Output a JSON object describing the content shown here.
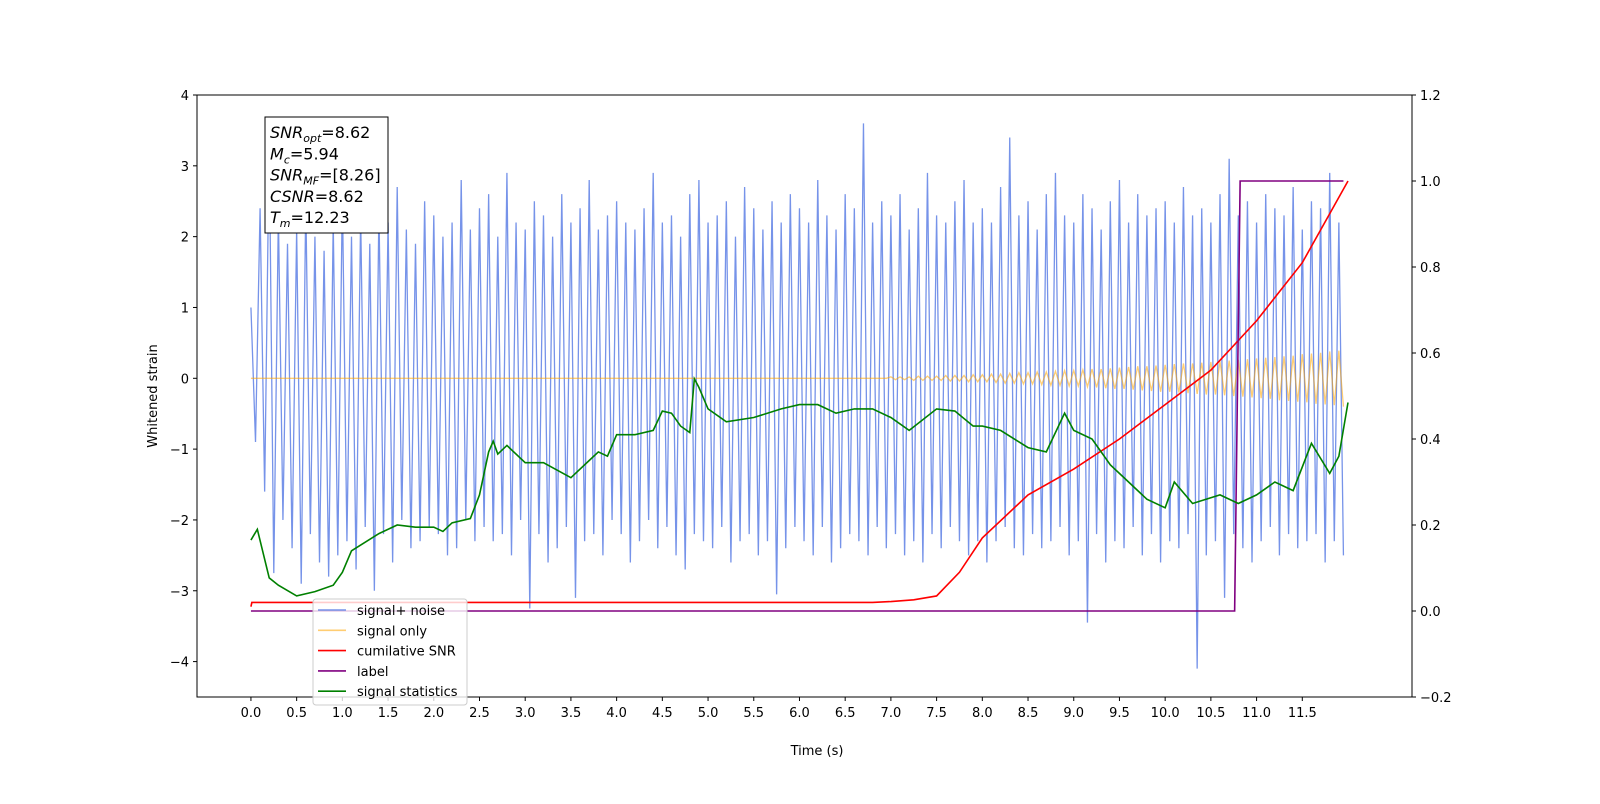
{
  "chart_data": {
    "type": "line",
    "xlabel": "Time (s)",
    "ylabel": "Whitened strain",
    "xlim": [
      -0.59,
      12.7
    ],
    "ylim": [
      -4.5,
      4
    ],
    "y2lim": [
      -0.2,
      1.2
    ],
    "xticks": [
      {
        "value": 0,
        "label": "0.0"
      },
      0.5,
      {
        "value": 1,
        "label": "1.0"
      },
      1.5,
      {
        "value": 2,
        "label": "2.0"
      },
      2.5,
      {
        "value": 3,
        "label": "3.0"
      },
      3.5,
      {
        "value": 4,
        "label": "4.0"
      },
      4.5,
      {
        "value": 5,
        "label": "5.0"
      },
      5.5,
      {
        "value": 6,
        "label": "6.0"
      },
      6.5,
      {
        "value": 7,
        "label": "7.0"
      },
      7.5,
      {
        "value": 8,
        "label": "8.0"
      },
      8.5,
      {
        "value": 9,
        "label": "9.0"
      },
      9.5,
      {
        "value": 10,
        "label": "10.0"
      },
      10.5,
      {
        "value": 11,
        "label": "11.0"
      },
      11.5
    ],
    "yticks": [
      {
        "value": -4,
        "label": "−4"
      },
      {
        "value": -3,
        "label": "−3"
      },
      {
        "value": -2,
        "label": "−2"
      },
      {
        "value": -1,
        "label": "−1"
      },
      0,
      1,
      2,
      3,
      4
    ],
    "y2ticks": [
      {
        "value": -0.2,
        "label": "−0.2"
      },
      {
        "value": 0,
        "label": "0.0"
      },
      0.2,
      0.4,
      0.6,
      0.8,
      {
        "value": 1,
        "label": "1.0"
      },
      1.2
    ],
    "legend": "lower left",
    "annotations": [
      {
        "base": "SNR",
        "sub": "opt",
        "rest": "=8.62"
      },
      {
        "base": "M",
        "sub": "c",
        "rest": "=5.94"
      },
      {
        "base": "SNR",
        "sub": "MF",
        "rest": "=[8.26]"
      },
      {
        "base": "CSNR",
        "sub": null,
        "rest": "=8.62"
      },
      {
        "base": "T",
        "sub": "m",
        "rest": "=12.23"
      }
    ],
    "series": [
      {
        "name": "signal+ noise",
        "color": "#4169e1",
        "axis": "y",
        "x": [
          0,
          0.05,
          0.1,
          0.15,
          0.2,
          0.25,
          0.3,
          0.35,
          0.4,
          0.45,
          0.5,
          0.55,
          0.6,
          0.65,
          0.7,
          0.75,
          0.8,
          0.85,
          0.9,
          0.95,
          1,
          1.05,
          1.1,
          1.15,
          1.2,
          1.25,
          1.3,
          1.35,
          1.4,
          1.45,
          1.5,
          1.55,
          1.6,
          1.65,
          1.7,
          1.75,
          1.8,
          1.85,
          1.9,
          1.95,
          2,
          2.05,
          2.1,
          2.15,
          2.2,
          2.25,
          2.3,
          2.35,
          2.4,
          2.45,
          2.5,
          2.55,
          2.6,
          2.65,
          2.7,
          2.75,
          2.8,
          2.85,
          2.9,
          2.95,
          3,
          3.05,
          3.1,
          3.15,
          3.2,
          3.25,
          3.3,
          3.35,
          3.4,
          3.45,
          3.5,
          3.55,
          3.6,
          3.65,
          3.7,
          3.75,
          3.8,
          3.85,
          3.9,
          3.95,
          4,
          4.05,
          4.1,
          4.15,
          4.2,
          4.25,
          4.3,
          4.35,
          4.4,
          4.45,
          4.5,
          4.55,
          4.6,
          4.65,
          4.7,
          4.75,
          4.8,
          4.85,
          4.9,
          4.95,
          5,
          5.05,
          5.1,
          5.15,
          5.2,
          5.25,
          5.3,
          5.35,
          5.4,
          5.45,
          5.5,
          5.55,
          5.6,
          5.65,
          5.7,
          5.75,
          5.8,
          5.85,
          5.9,
          5.95,
          6,
          6.05,
          6.1,
          6.15,
          6.2,
          6.25,
          6.3,
          6.35,
          6.4,
          6.45,
          6.5,
          6.55,
          6.6,
          6.65,
          6.7,
          6.75,
          6.8,
          6.85,
          6.9,
          6.95,
          7,
          7.05,
          7.1,
          7.15,
          7.2,
          7.25,
          7.3,
          7.35,
          7.4,
          7.45,
          7.5,
          7.55,
          7.6,
          7.65,
          7.7,
          7.75,
          7.8,
          7.85,
          7.9,
          7.95,
          8,
          8.05,
          8.1,
          8.15,
          8.2,
          8.25,
          8.3,
          8.35,
          8.4,
          8.45,
          8.5,
          8.55,
          8.6,
          8.65,
          8.7,
          8.75,
          8.8,
          8.85,
          8.9,
          8.95,
          9,
          9.05,
          9.1,
          9.15,
          9.2,
          9.25,
          9.3,
          9.35,
          9.4,
          9.45,
          9.5,
          9.55,
          9.6,
          9.65,
          9.7,
          9.75,
          9.8,
          9.85,
          9.9,
          9.95,
          10,
          10.05,
          10.1,
          10.15,
          10.2,
          10.25,
          10.3,
          10.35,
          10.4,
          10.45,
          10.5,
          10.55,
          10.6,
          10.65,
          10.7,
          10.75,
          10.8,
          10.85,
          10.9,
          10.95,
          11,
          11.05,
          11.1,
          11.15,
          11.2,
          11.25,
          11.3,
          11.35,
          11.4,
          11.45,
          11.5,
          11.55,
          11.6,
          11.65,
          11.7,
          11.75,
          11.8,
          11.85,
          11.9,
          11.95
        ],
        "values": [
          1.0,
          -0.9,
          2.4,
          -1.6,
          3.35,
          -2.75,
          2.3,
          -2.0,
          1.9,
          -2.4,
          2.1,
          -2.9,
          2.5,
          -2.2,
          2.0,
          -2.6,
          1.8,
          -2.8,
          2.2,
          -2.5,
          2.6,
          -2.3,
          2.0,
          -2.7,
          2.3,
          -2.1,
          1.9,
          -3.0,
          2.4,
          -2.2,
          2.2,
          -2.6,
          2.7,
          -2.0,
          2.1,
          -2.4,
          1.9,
          -2.3,
          2.5,
          -2.1,
          2.3,
          -2.2,
          2.0,
          -2.5,
          2.2,
          -2.4,
          2.8,
          -2.0,
          2.1,
          -2.3,
          2.4,
          -2.1,
          2.6,
          -2.3,
          2.0,
          -2.2,
          2.9,
          -2.5,
          2.2,
          -2.0,
          2.1,
          -3.25,
          2.5,
          -2.2,
          2.3,
          -2.6,
          2.0,
          -2.4,
          2.6,
          -2.1,
          2.2,
          -3.1,
          2.4,
          -2.3,
          2.8,
          -2.2,
          2.1,
          -2.5,
          2.3,
          -2.0,
          2.5,
          -2.2,
          2.2,
          -2.6,
          2.1,
          -2.3,
          2.4,
          -2.0,
          2.9,
          -2.4,
          2.2,
          -2.1,
          2.3,
          -2.5,
          2.0,
          -2.7,
          2.6,
          -2.2,
          2.8,
          -2.3,
          2.2,
          -2.4,
          2.3,
          -2.1,
          2.5,
          -2.6,
          2.0,
          -2.3,
          2.7,
          -2.2,
          2.4,
          -2.5,
          2.1,
          -2.3,
          2.5,
          -3.05,
          2.2,
          -2.4,
          2.6,
          -2.1,
          2.4,
          -2.3,
          2.2,
          -2.5,
          2.8,
          -2.1,
          2.3,
          -2.6,
          2.1,
          -2.4,
          2.6,
          -2.2,
          2.4,
          -2.3,
          3.6,
          -2.5,
          2.2,
          -2.1,
          2.5,
          -2.4,
          2.3,
          -2.2,
          2.6,
          -2.5,
          2.1,
          -2.3,
          2.4,
          -2.6,
          2.9,
          -2.2,
          2.3,
          -2.4,
          2.2,
          -2.1,
          2.5,
          -2.3,
          2.8,
          -2.5,
          2.2,
          -2.3,
          2.4,
          -2.6,
          2.2,
          -2.3,
          2.7,
          -2.1,
          3.4,
          -2.4,
          2.3,
          -2.5,
          2.5,
          -2.2,
          2.1,
          -2.4,
          2.6,
          -2.3,
          2.9,
          -2.1,
          2.3,
          -2.5,
          2.2,
          -2.3,
          2.6,
          -3.45,
          2.4,
          -2.2,
          2.1,
          -2.6,
          2.5,
          -2.3,
          2.8,
          -2.4,
          2.2,
          -2.1,
          2.6,
          -2.5,
          2.3,
          -2.2,
          2.4,
          -2.6,
          2.5,
          -2.3,
          2.2,
          -2.4,
          2.7,
          -2.2,
          2.3,
          -4.1,
          2.4,
          -2.5,
          2.2,
          -2.3,
          2.6,
          -3.1,
          3.1,
          -2.2,
          2.3,
          -2.4,
          2.5,
          -2.6,
          2.2,
          -2.3,
          2.6,
          -2.1,
          2.4,
          -2.5,
          2.3,
          -2.2,
          2.7,
          -2.4,
          2.1,
          -2.3,
          2.5,
          -2.2,
          2.4,
          -2.6,
          2.9,
          -2.3,
          2.2,
          -2.5
        ]
      },
      {
        "name": "signal only",
        "color": "#ffa500",
        "axis": "y",
        "x": [
          0,
          6.95,
          7,
          7.05,
          7.1,
          7.15,
          7.2,
          7.25,
          7.3,
          7.35,
          7.4,
          7.45,
          7.5,
          7.55,
          7.6,
          7.65,
          7.7,
          7.75,
          7.8,
          7.85,
          7.9,
          7.95,
          8,
          8.05,
          8.1,
          8.15,
          8.2,
          8.25,
          8.3,
          8.35,
          8.4,
          8.45,
          8.5,
          8.55,
          8.6,
          8.65,
          8.7,
          8.75,
          8.8,
          8.85,
          8.9,
          8.95,
          9,
          9.05,
          9.1,
          9.15,
          9.2,
          9.25,
          9.3,
          9.35,
          9.4,
          9.45,
          9.5,
          9.55,
          9.6,
          9.65,
          9.7,
          9.75,
          9.8,
          9.85,
          9.9,
          9.95,
          10,
          10.05,
          10.1,
          10.15,
          10.2,
          10.25,
          10.3,
          10.35,
          10.4,
          10.45,
          10.5,
          10.55,
          10.6,
          10.65,
          10.7,
          10.75,
          10.8,
          10.85,
          10.9,
          10.95,
          11,
          11.05,
          11.1,
          11.15,
          11.2,
          11.25,
          11.3,
          11.35,
          11.4,
          11.45,
          11.5,
          11.55,
          11.6,
          11.65,
          11.7,
          11.75,
          11.8,
          11.85,
          11.9,
          11.95
        ],
        "values": [
          0,
          0,
          0.02,
          -0.02,
          0.02,
          -0.02,
          0.02,
          -0.03,
          0.03,
          -0.03,
          0.03,
          -0.03,
          0.03,
          -0.03,
          0.04,
          -0.04,
          0.04,
          -0.04,
          0.04,
          -0.05,
          0.05,
          -0.05,
          0.05,
          -0.05,
          0.06,
          -0.06,
          0.06,
          -0.07,
          0.07,
          -0.07,
          0.08,
          -0.08,
          0.08,
          -0.08,
          0.09,
          -0.09,
          0.09,
          -0.1,
          0.1,
          -0.1,
          0.11,
          -0.11,
          0.11,
          -0.11,
          0.12,
          -0.12,
          0.13,
          -0.13,
          0.13,
          -0.14,
          0.14,
          -0.15,
          0.15,
          -0.15,
          0.16,
          -0.16,
          0.17,
          -0.17,
          0.17,
          -0.18,
          0.18,
          -0.19,
          0.19,
          -0.19,
          0.2,
          -0.2,
          0.21,
          -0.21,
          0.21,
          -0.22,
          0.22,
          -0.23,
          0.23,
          -0.23,
          0.24,
          -0.24,
          0.25,
          -0.25,
          0.26,
          -0.26,
          0.27,
          -0.27,
          0.28,
          -0.28,
          0.29,
          -0.29,
          0.3,
          -0.31,
          0.31,
          -0.32,
          0.32,
          -0.33,
          0.34,
          -0.34,
          0.35,
          -0.36,
          0.36,
          -0.37,
          0.38,
          -0.38,
          0.39,
          -0.4
        ]
      },
      {
        "name": "cumilative SNR",
        "color": "#ff0000",
        "axis": "y2",
        "x": [
          0,
          0.01,
          3,
          6.8,
          7,
          7.25,
          7.5,
          7.75,
          8,
          8.5,
          9,
          9.5,
          10,
          10.5,
          11,
          11.5,
          12
        ],
        "values": [
          0.01,
          0.02,
          0.02,
          0.02,
          0.022,
          0.026,
          0.035,
          0.09,
          0.17,
          0.27,
          0.33,
          0.4,
          0.48,
          0.56,
          0.675,
          0.81,
          1.0
        ]
      },
      {
        "name": "label",
        "color": "#800080",
        "axis": "y2",
        "x": [
          0,
          10.76,
          10.82,
          11.95
        ],
        "values": [
          0,
          0,
          1,
          1
        ]
      },
      {
        "name": "signal statistics",
        "color": "#008000",
        "axis": "y2",
        "x": [
          0,
          0.07,
          0.2,
          0.3,
          0.5,
          0.7,
          0.9,
          1.0,
          1.1,
          1.4,
          1.6,
          1.8,
          2.0,
          2.1,
          2.2,
          2.4,
          2.5,
          2.6,
          2.65,
          2.7,
          2.8,
          3.0,
          3.2,
          3.5,
          3.7,
          3.8,
          3.9,
          4.0,
          4.2,
          4.4,
          4.5,
          4.6,
          4.7,
          4.8,
          4.85,
          4.9,
          5.0,
          5.2,
          5.5,
          5.8,
          6.0,
          6.2,
          6.4,
          6.6,
          6.8,
          7.0,
          7.2,
          7.5,
          7.7,
          7.9,
          8.0,
          8.2,
          8.5,
          8.7,
          8.9,
          9.0,
          9.2,
          9.4,
          9.6,
          9.8,
          10.0,
          10.1,
          10.3,
          10.6,
          10.8,
          11.0,
          11.2,
          11.4,
          11.6,
          11.8,
          11.9,
          12.0
        ],
        "values": [
          0.165,
          0.19,
          0.077,
          0.06,
          0.035,
          0.045,
          0.06,
          0.09,
          0.14,
          0.18,
          0.2,
          0.195,
          0.195,
          0.185,
          0.205,
          0.215,
          0.27,
          0.37,
          0.395,
          0.365,
          0.385,
          0.345,
          0.345,
          0.31,
          0.35,
          0.37,
          0.36,
          0.41,
          0.41,
          0.42,
          0.465,
          0.46,
          0.43,
          0.415,
          0.54,
          0.52,
          0.47,
          0.44,
          0.45,
          0.47,
          0.48,
          0.48,
          0.46,
          0.47,
          0.47,
          0.45,
          0.42,
          0.47,
          0.465,
          0.43,
          0.43,
          0.42,
          0.38,
          0.37,
          0.46,
          0.42,
          0.4,
          0.34,
          0.3,
          0.26,
          0.24,
          0.3,
          0.25,
          0.27,
          0.25,
          0.27,
          0.3,
          0.28,
          0.39,
          0.32,
          0.36,
          0.485
        ]
      }
    ]
  }
}
